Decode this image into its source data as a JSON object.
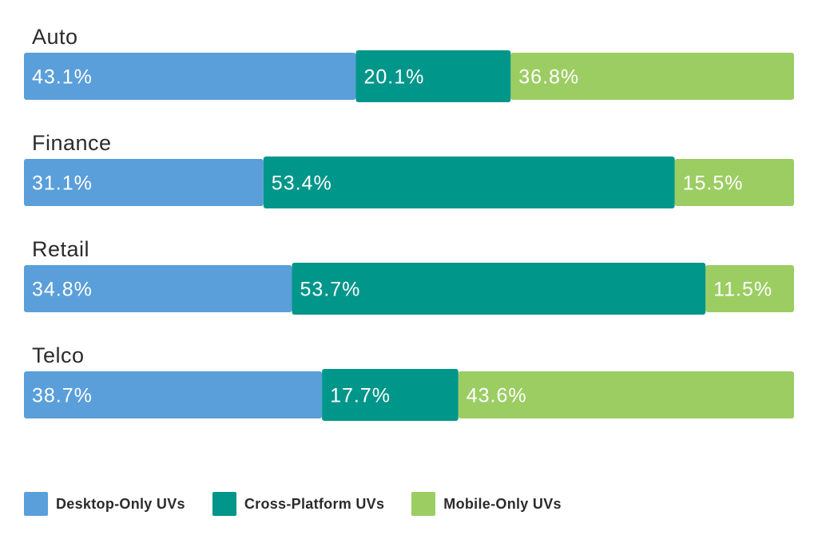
{
  "colors": {
    "desktop": "#5a9fd9",
    "cross": "#00968a",
    "mobile": "#9ccd63",
    "text": "#2b2b2b"
  },
  "chart_data": {
    "type": "bar",
    "orientation": "horizontal",
    "stacked": true,
    "normalized_percent": true,
    "categories": [
      "Auto",
      "Finance",
      "Retail",
      "Telco"
    ],
    "series": [
      {
        "name": "Desktop-Only UVs",
        "key": "desktop",
        "values": [
          43.1,
          31.1,
          34.8,
          38.7
        ],
        "labels": [
          "43.1%",
          "31.1%",
          "34.8%",
          "38.7%"
        ]
      },
      {
        "name": "Cross-Platform UVs",
        "key": "cross",
        "values": [
          20.1,
          53.4,
          53.7,
          17.7
        ],
        "labels": [
          "20.1%",
          "53.4%",
          "53.7%",
          "17.7%"
        ]
      },
      {
        "name": "Mobile-Only UVs",
        "key": "mobile",
        "values": [
          36.8,
          15.5,
          11.5,
          43.6
        ],
        "labels": [
          "36.8%",
          "15.5%",
          "11.5%",
          "43.6%"
        ]
      }
    ],
    "legend_position": "bottom-left",
    "grid": false
  },
  "legend": {
    "items": [
      {
        "label": "Desktop-Only UVs",
        "key": "desktop"
      },
      {
        "label": "Cross-Platform UVs",
        "key": "cross"
      },
      {
        "label": "Mobile-Only UVs",
        "key": "mobile"
      }
    ]
  }
}
